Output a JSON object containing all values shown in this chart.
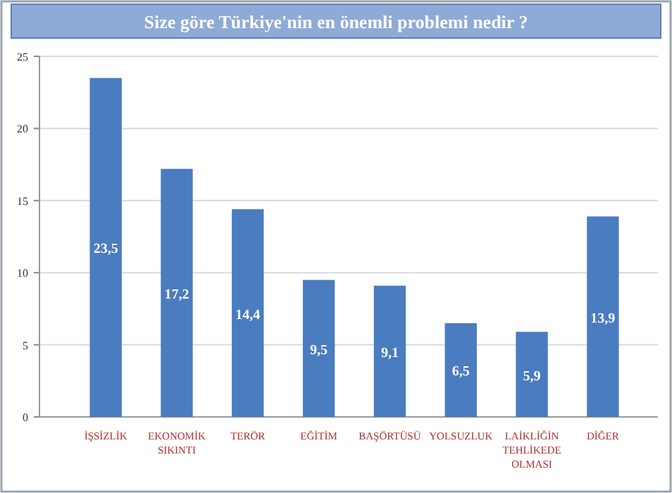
{
  "chart_data": {
    "type": "bar",
    "title": "Size göre Türkiye'nin en önemli problemi nedir ?",
    "categories": [
      "İŞSİZLİK",
      "EKONOMİK\nSIKINTI",
      "TERÖR",
      "EĞİTİM",
      "BAŞÖRTÜSÜ",
      "YOLSUZLUK",
      "LAİKLİĞİN\nTEHLİKEDE\nOLMASI",
      "DİĞER"
    ],
    "values": [
      23.5,
      17.2,
      14.4,
      9.5,
      9.1,
      6.5,
      5.9,
      13.9
    ],
    "value_labels": [
      "23,5",
      "17,2",
      "14,4",
      "9,5",
      "9,1",
      "6,5",
      "5,9",
      "13,9"
    ],
    "color": "#4a7cc0",
    "ylim": [
      0,
      25
    ],
    "yticks": [
      0,
      5,
      10,
      15,
      20,
      25
    ],
    "grid": "y"
  }
}
